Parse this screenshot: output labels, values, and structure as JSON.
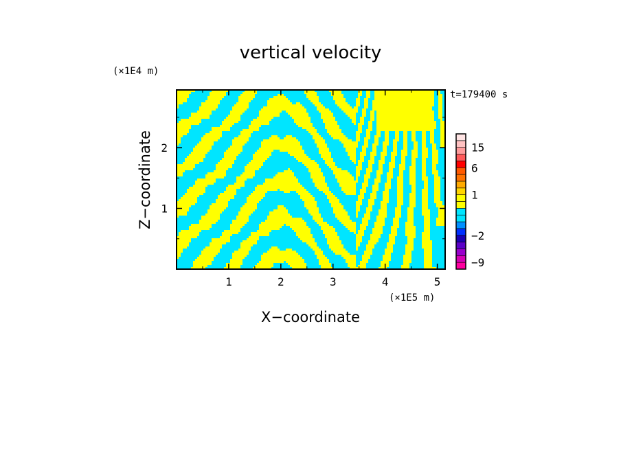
{
  "chart_data": {
    "type": "heatmap",
    "title": "vertical velocity",
    "xlabel": "X−coordinate",
    "ylabel": "Z−coordinate",
    "x_unit": "(×1E5 m)",
    "y_unit": "(×1E4 m)",
    "time_label": "t=179400 s",
    "xlim": [
      0,
      5.15
    ],
    "ylim": [
      0,
      2.95
    ],
    "x_ticks": [
      {
        "value": 1,
        "label": "1"
      },
      {
        "value": 2,
        "label": "2"
      },
      {
        "value": 3,
        "label": "3"
      },
      {
        "value": 4,
        "label": "4"
      },
      {
        "value": 5,
        "label": "5"
      }
    ],
    "y_ticks": [
      {
        "value": 1,
        "label": "1"
      },
      {
        "value": 2,
        "label": "2"
      }
    ],
    "colors": {
      "positive": "#ffff00",
      "negative": "#00e5ff"
    },
    "colorbar": {
      "levels": [
        -12,
        -9,
        -6,
        -4,
        -3,
        -2,
        -1.5,
        -1,
        -0.5,
        0,
        0.5,
        1,
        1.5,
        2,
        3,
        6,
        9,
        12,
        15,
        18,
        24
      ],
      "colors": [
        "#ff00a0",
        "#d600b4",
        "#9900cc",
        "#5a00c8",
        "#1a00b4",
        "#0030ff",
        "#0090ff",
        "#00e5ff",
        "#00e5ff",
        "#ffff00",
        "#ffff00",
        "#ffd500",
        "#ffaa00",
        "#ff7300",
        "#ff5a00",
        "#ff0000",
        "#ff5a5a",
        "#ff9c9c",
        "#ffc2c2",
        "#ffe4e4"
      ],
      "tick_labels": [
        {
          "value": -9,
          "label": "−9"
        },
        {
          "value": -2,
          "label": "−2"
        },
        {
          "value": 1,
          "label": "1"
        },
        {
          "value": 6,
          "label": "6"
        },
        {
          "value": 15,
          "label": "15"
        }
      ]
    }
  }
}
